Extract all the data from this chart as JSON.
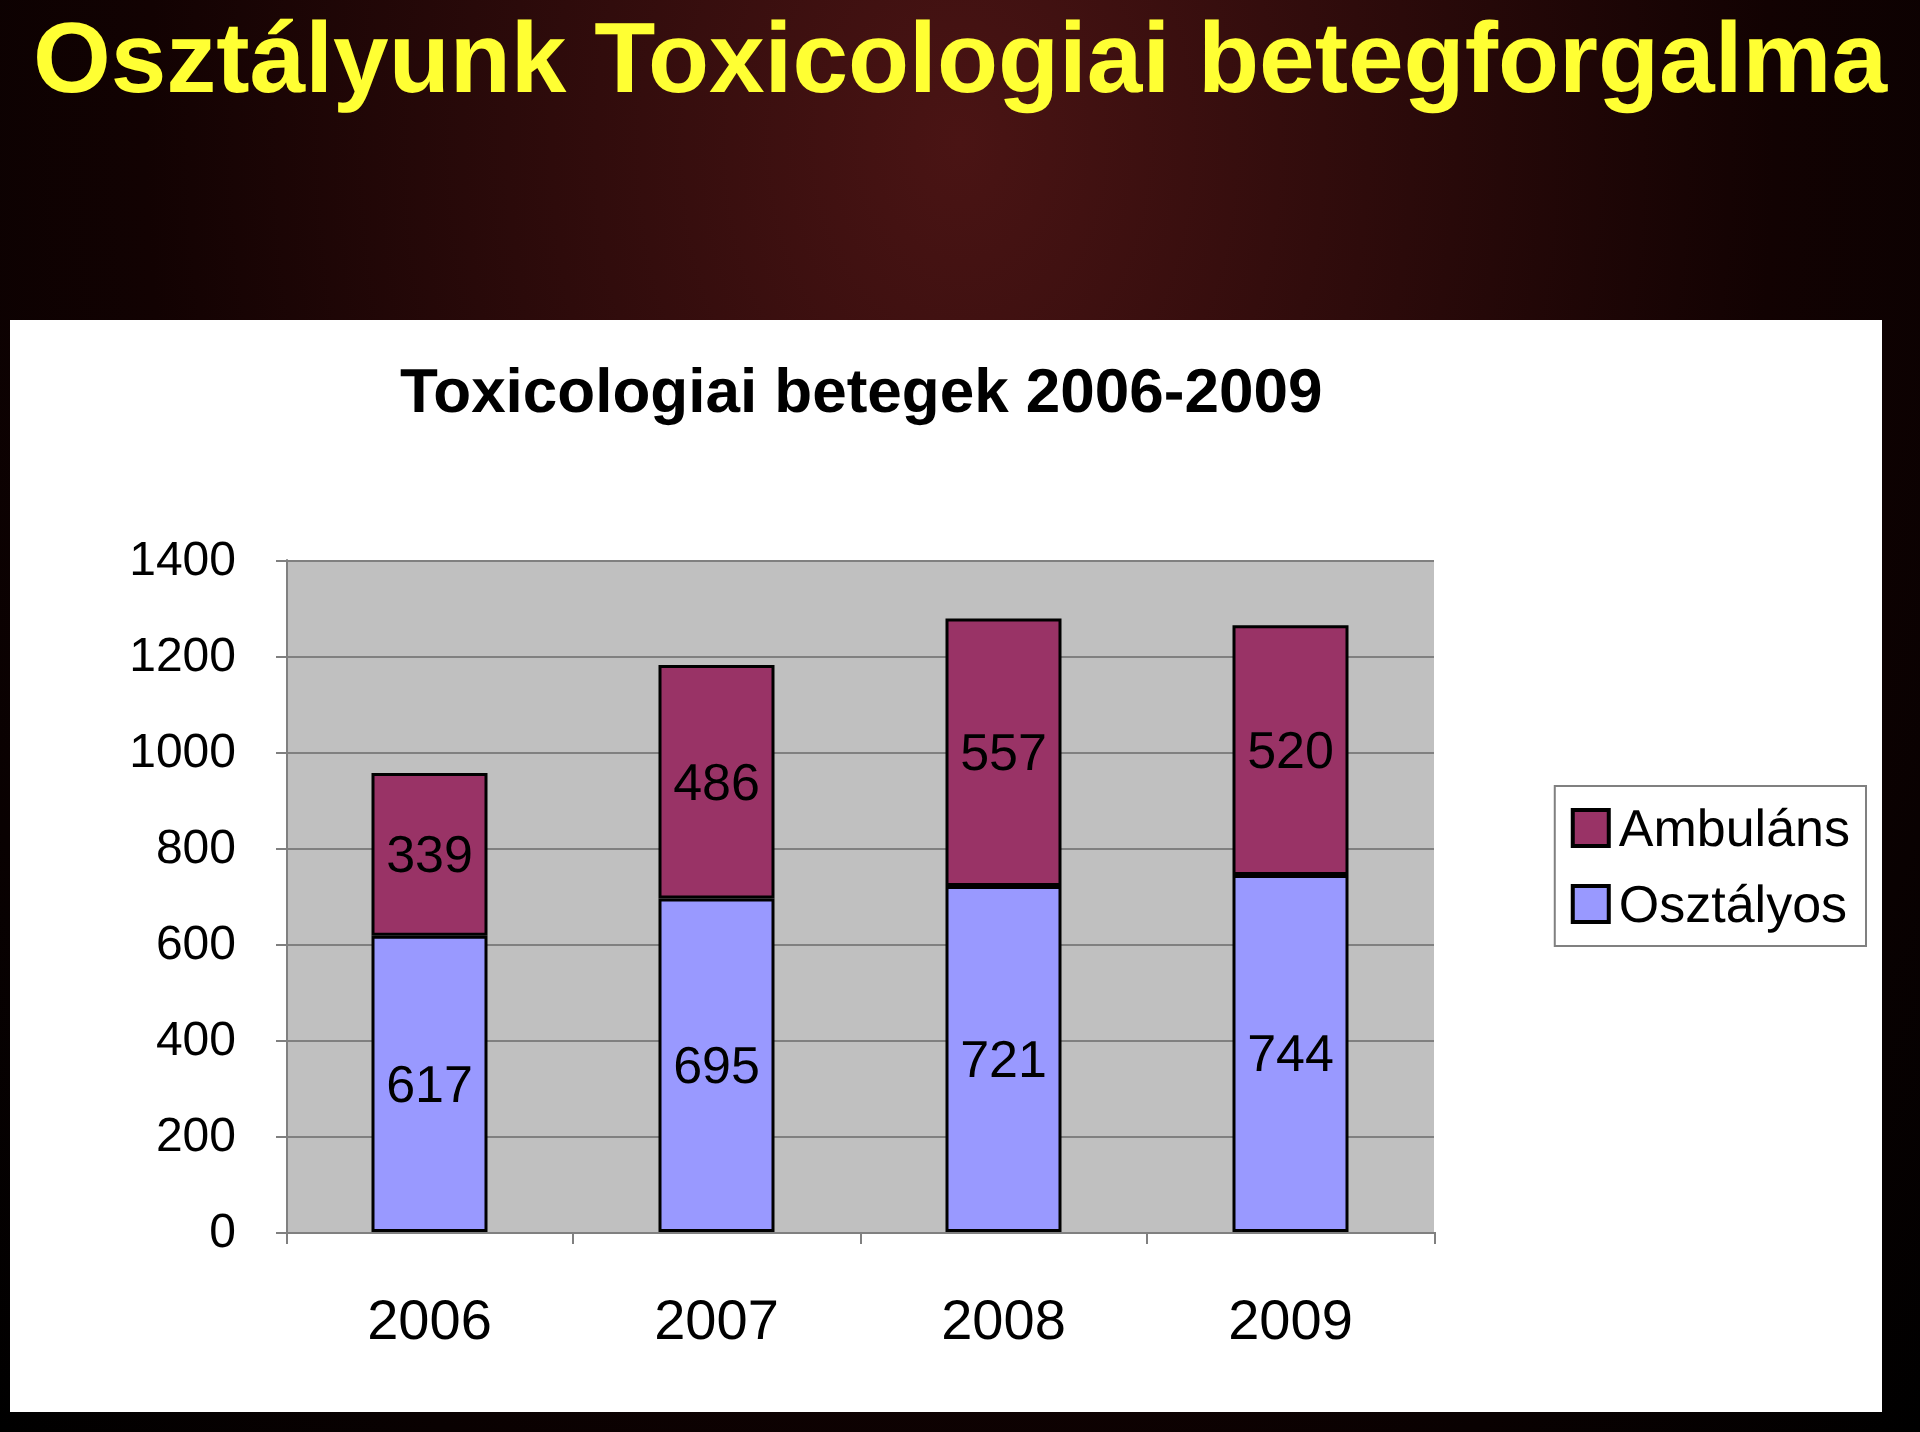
{
  "chart_data": {
    "type": "bar",
    "title": "Osztályunk Toxicologiai betegforgalma",
    "subtitle": "Toxicologiai betegek 2006-2009",
    "categories": [
      "2006",
      "2007",
      "2008",
      "2009"
    ],
    "series": [
      {
        "name": "Osztályos",
        "color": "#9999ff",
        "values": [
          617,
          695,
          721,
          744
        ]
      },
      {
        "name": "Ambuláns",
        "color": "#993366",
        "values": [
          339,
          486,
          557,
          520
        ]
      }
    ],
    "stacked": true,
    "data_labels": true,
    "ylim": [
      0,
      1400
    ],
    "yticks": [
      0,
      200,
      400,
      600,
      800,
      1000,
      1200,
      1400
    ],
    "grid": "y",
    "legend": "right"
  }
}
